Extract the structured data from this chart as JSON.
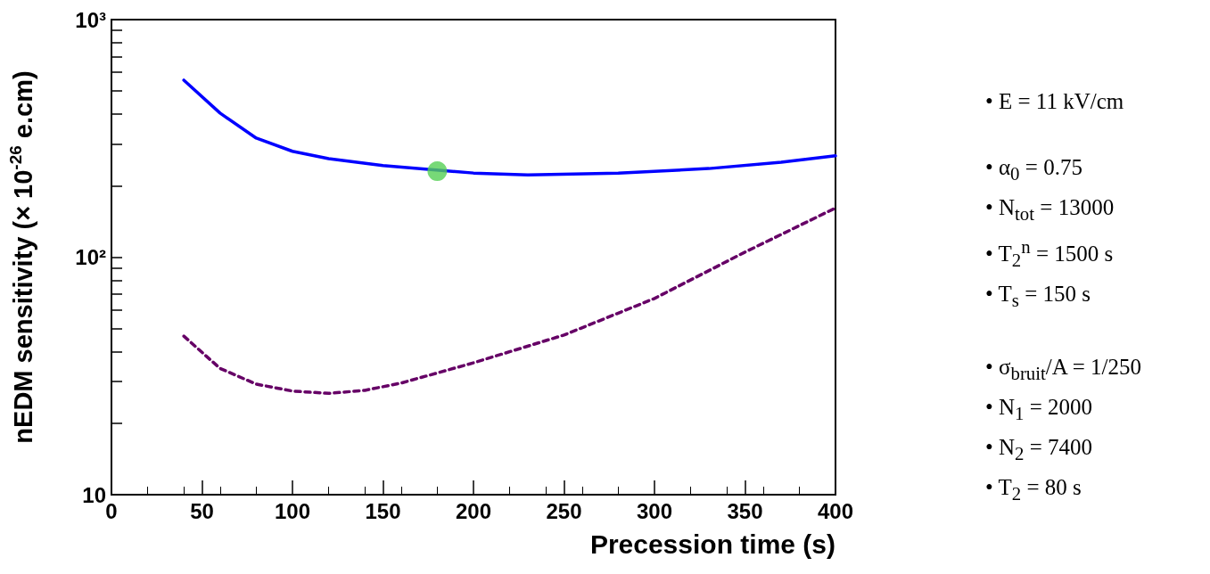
{
  "chart_data": {
    "type": "line",
    "xlabel": "Precession time (s)",
    "ylabel": "nEDM sensitivity (× 10$^{-26}$ e.cm)",
    "log": "y",
    "grid": false,
    "xlim": [
      0,
      400
    ],
    "xticks": [
      0,
      50,
      100,
      150,
      200,
      250,
      300,
      350,
      400
    ],
    "ylim": [
      10,
      1000
    ],
    "yticks": [
      {
        "value": 10,
        "label": "10"
      },
      {
        "value": 20,
        "label": null
      },
      {
        "value": 30,
        "label": null
      },
      {
        "value": 40,
        "label": null
      },
      {
        "value": 50,
        "label": null
      },
      {
        "value": 60,
        "label": null
      },
      {
        "value": 70,
        "label": null
      },
      {
        "value": 80,
        "label": null
      },
      {
        "value": 90,
        "label": null
      },
      {
        "value": 100,
        "label": "10²"
      },
      {
        "value": 200,
        "label": null
      },
      {
        "value": 300,
        "label": null
      },
      {
        "value": 400,
        "label": null
      },
      {
        "value": 500,
        "label": null
      },
      {
        "value": 600,
        "label": null
      },
      {
        "value": 700,
        "label": null
      },
      {
        "value": 800,
        "label": null
      },
      {
        "value": 900,
        "label": null
      },
      {
        "value": 1000,
        "label": "10³"
      }
    ],
    "series": [
      {
        "color": "#0000ff",
        "line_style": "solid",
        "marker": "none",
        "x": [
          40,
          60,
          80,
          100,
          120,
          150,
          200,
          230,
          280,
          330,
          370,
          400
        ],
        "values": [
          556,
          404,
          317,
          279,
          260,
          243,
          226,
          222,
          226,
          236,
          251,
          267
        ]
      },
      {
        "color": "#660066",
        "line_style": "dashed",
        "marker": "none",
        "x": [
          40,
          60,
          80,
          100,
          120,
          140,
          160,
          200,
          250,
          300,
          350,
          400
        ],
        "values": [
          46.5,
          34.0,
          29.2,
          27.3,
          26.7,
          27.5,
          29.5,
          35.9,
          47.0,
          67,
          105,
          161
        ]
      },
      {
        "type": "scatter",
        "color": "#55d055",
        "marker": "circle",
        "x": [
          180
        ],
        "values": [
          230
        ]
      }
    ],
    "annotations": [
      "• E = 11 kV/cm",
      "• α$_{0}$ = 0.75",
      "• N$_{tot}$ = 13000",
      "• T$_{2}$$^{n}$ = 1500 s",
      "• T$_{s}$ = 150 s",
      "• σ$_{bruit}$/A = 1/250",
      "• N$_{1}$ = 2000",
      "• N$_{2}$ = 7400",
      "• T$_{2}$ = 80 s"
    ]
  }
}
